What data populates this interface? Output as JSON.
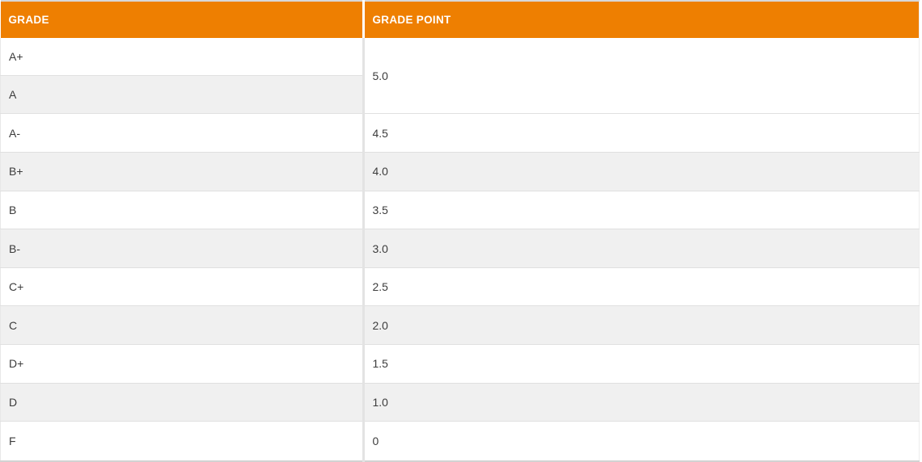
{
  "table": {
    "title": "grade-point-table",
    "columns": [
      {
        "key": "grade",
        "label": "GRADE"
      },
      {
        "key": "point",
        "label": "GRADE POINT"
      }
    ],
    "rows": [
      {
        "grade": "A+",
        "point": "5.0"
      },
      {
        "grade": "A"
      },
      {
        "grade": "A-",
        "point": "4.5"
      },
      {
        "grade": "B+",
        "point": "4.0"
      },
      {
        "grade": "B",
        "point": "3.5"
      },
      {
        "grade": "B-",
        "point": "3.0"
      },
      {
        "grade": "C+",
        "point": "2.5"
      },
      {
        "grade": "C",
        "point": "2.0"
      },
      {
        "grade": "D+",
        "point": "1.5"
      },
      {
        "grade": "D",
        "point": "1.0"
      },
      {
        "grade": "F",
        "point": "0"
      }
    ],
    "colors": {
      "header_bg": "#EE7F01",
      "header_text": "#FFFFFF",
      "row_bg": "#FFFFFF",
      "row_alt_bg": "#F0F0F0",
      "body_text": "#3C3C3C",
      "border": "#E0E0E0"
    }
  }
}
